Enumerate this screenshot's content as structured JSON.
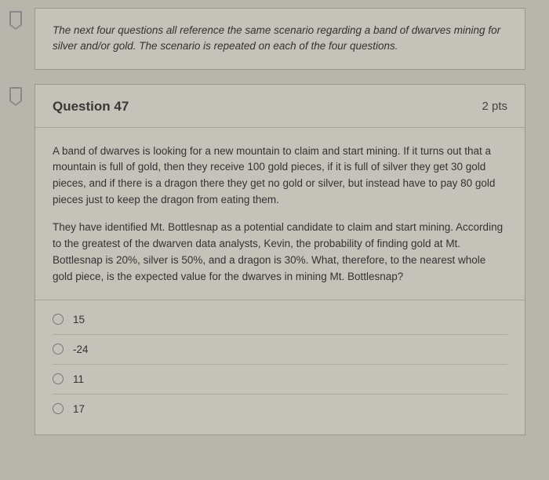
{
  "info_text": "The next four questions all reference the same scenario regarding a band of dwarves mining for silver and/or gold. The scenario is repeated on each of the four questions.",
  "question": {
    "number_label": "Question 47",
    "points_label": "2 pts",
    "paragraph1": "A band of dwarves is looking for a new mountain to claim and start mining. If it turns out that a mountain is full of gold, then they receive 100 gold pieces, if it is full of silver they get 30 gold pieces, and if there is a dragon there they get no gold or silver, but instead have to pay 80 gold pieces just to keep the dragon from eating them.",
    "paragraph2": "They have identified Mt. Bottlesnap as a potential candidate to claim and start mining. According to the greatest of the dwarven data analysts, Kevin, the probability of finding gold at Mt. Bottlesnap is 20%, silver is 50%, and a dragon is 30%. What, therefore, to the nearest whole gold piece, is the expected value for the dwarves in mining Mt. Bottlesnap?",
    "options": [
      {
        "label": "15"
      },
      {
        "label": "-24"
      },
      {
        "label": "11"
      },
      {
        "label": "17"
      }
    ]
  }
}
